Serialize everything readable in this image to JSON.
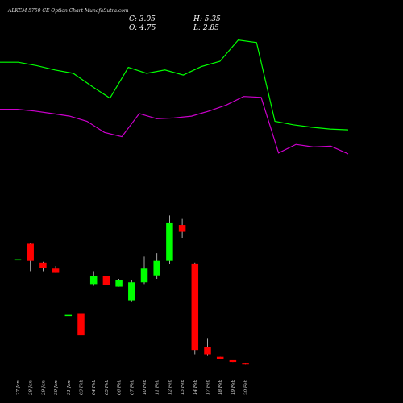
{
  "title": "ALKEM 5750  CE Option   Chart  MunafaSutra.com",
  "ohlc": {
    "c_label": "C: 3.05",
    "h_label": "H: 5.35",
    "o_label": "O: 4.75",
    "l_label": "L: 2.85"
  },
  "colors": {
    "background": "#000000",
    "upper_line": "#00ff00",
    "lower_line": "#cc00cc",
    "bull": "#00ff00",
    "bear": "#ff0000",
    "neutral": "#00ff00"
  },
  "chart_data": {
    "type": "candlestick",
    "x": [
      "27 Jan",
      "28 Jan",
      "29 Jan",
      "30 Jan",
      "31 Jan",
      "03 Feb",
      "04 Feb",
      "05 Feb",
      "06 Feb",
      "07 Feb",
      "10 Feb",
      "11 Feb",
      "12 Feb",
      "13 Feb",
      "14 Feb",
      "17 Feb",
      "18 Feb",
      "19 Feb",
      "20 Feb"
    ],
    "tick_labels": [
      "27 Jan",
      "28 Jan",
      "29 Jan",
      "30 Jan",
      "31 Jan",
      "03 Feb",
      "04 Feb",
      "05 Feb",
      "06 Feb",
      "07 Feb",
      "10 Feb",
      "11 Feb",
      "12 Feb",
      "13 Feb",
      "14 Feb",
      "17 Feb",
      "18 Feb",
      "19 Feb",
      "20 Feb"
    ],
    "candles": [
      {
        "o": 55.0,
        "h": 55.0,
        "l": 55.0,
        "c": 55.0,
        "dir": "flat"
      },
      {
        "o": 73.0,
        "h": 74.0,
        "l": 41.0,
        "c": 53.0,
        "dir": "down"
      },
      {
        "o": 51.0,
        "h": 52.0,
        "l": 41.0,
        "c": 45.0,
        "dir": "down"
      },
      {
        "o": 44.0,
        "h": 47.0,
        "l": 39.0,
        "c": 39.0,
        "dir": "down"
      },
      {
        "o": -10.0,
        "h": -10.0,
        "l": -10.0,
        "c": -10.0,
        "dir": "flat"
      },
      {
        "o": -8.0,
        "h": -8.0,
        "l": -34.0,
        "c": -34.0,
        "dir": "down"
      },
      {
        "o": 26.0,
        "h": 41.0,
        "l": 24.0,
        "c": 35.0,
        "dir": "up"
      },
      {
        "o": 35.0,
        "h": 35.0,
        "l": 25.0,
        "c": 25.0,
        "dir": "down"
      },
      {
        "o": 23.0,
        "h": 32.0,
        "l": 23.0,
        "c": 31.0,
        "dir": "up"
      },
      {
        "o": 7.0,
        "h": 31.0,
        "l": 5.0,
        "c": 28.0,
        "dir": "up"
      },
      {
        "o": 28.0,
        "h": 58.0,
        "l": 26.0,
        "c": 44.0,
        "dir": "up"
      },
      {
        "o": 36.0,
        "h": 62.0,
        "l": 32.0,
        "c": 53.0,
        "dir": "up"
      },
      {
        "o": 53.0,
        "h": 106.0,
        "l": 49.0,
        "c": 97.0,
        "dir": "up"
      },
      {
        "o": 95.0,
        "h": 102.0,
        "l": 80.0,
        "c": 87.0,
        "dir": "down"
      },
      {
        "o": 50.0,
        "h": 51.0,
        "l": -56.0,
        "c": -51.0,
        "dir": "down"
      },
      {
        "o": -48.0,
        "h": -37.0,
        "l": -58.0,
        "c": -56.0,
        "dir": "down"
      },
      {
        "o": -59.0,
        "h": -59.0,
        "l": -62.0,
        "c": -62.0,
        "dir": "down"
      },
      {
        "o": -63.0,
        "h": -63.0,
        "l": -65.0,
        "c": -65.0,
        "dir": "down"
      },
      {
        "o": -66.0,
        "h": -66.0,
        "l": -68.0,
        "c": -68.0,
        "dir": "down"
      }
    ],
    "upper_band": [
      285,
      285,
      281,
      276,
      272,
      257,
      243,
      279,
      272,
      276,
      270,
      280,
      286,
      311,
      308,
      216,
      212,
      209,
      207,
      206
    ],
    "lower_band": [
      230,
      230,
      228,
      225,
      222,
      216,
      203,
      198,
      225,
      219,
      220,
      222,
      228,
      235,
      245,
      244,
      179,
      189,
      186,
      187,
      178
    ],
    "ylim": [
      -80,
      320
    ],
    "title": "ALKEM 5750  CE Option   Chart  MunafaSutra.com"
  }
}
